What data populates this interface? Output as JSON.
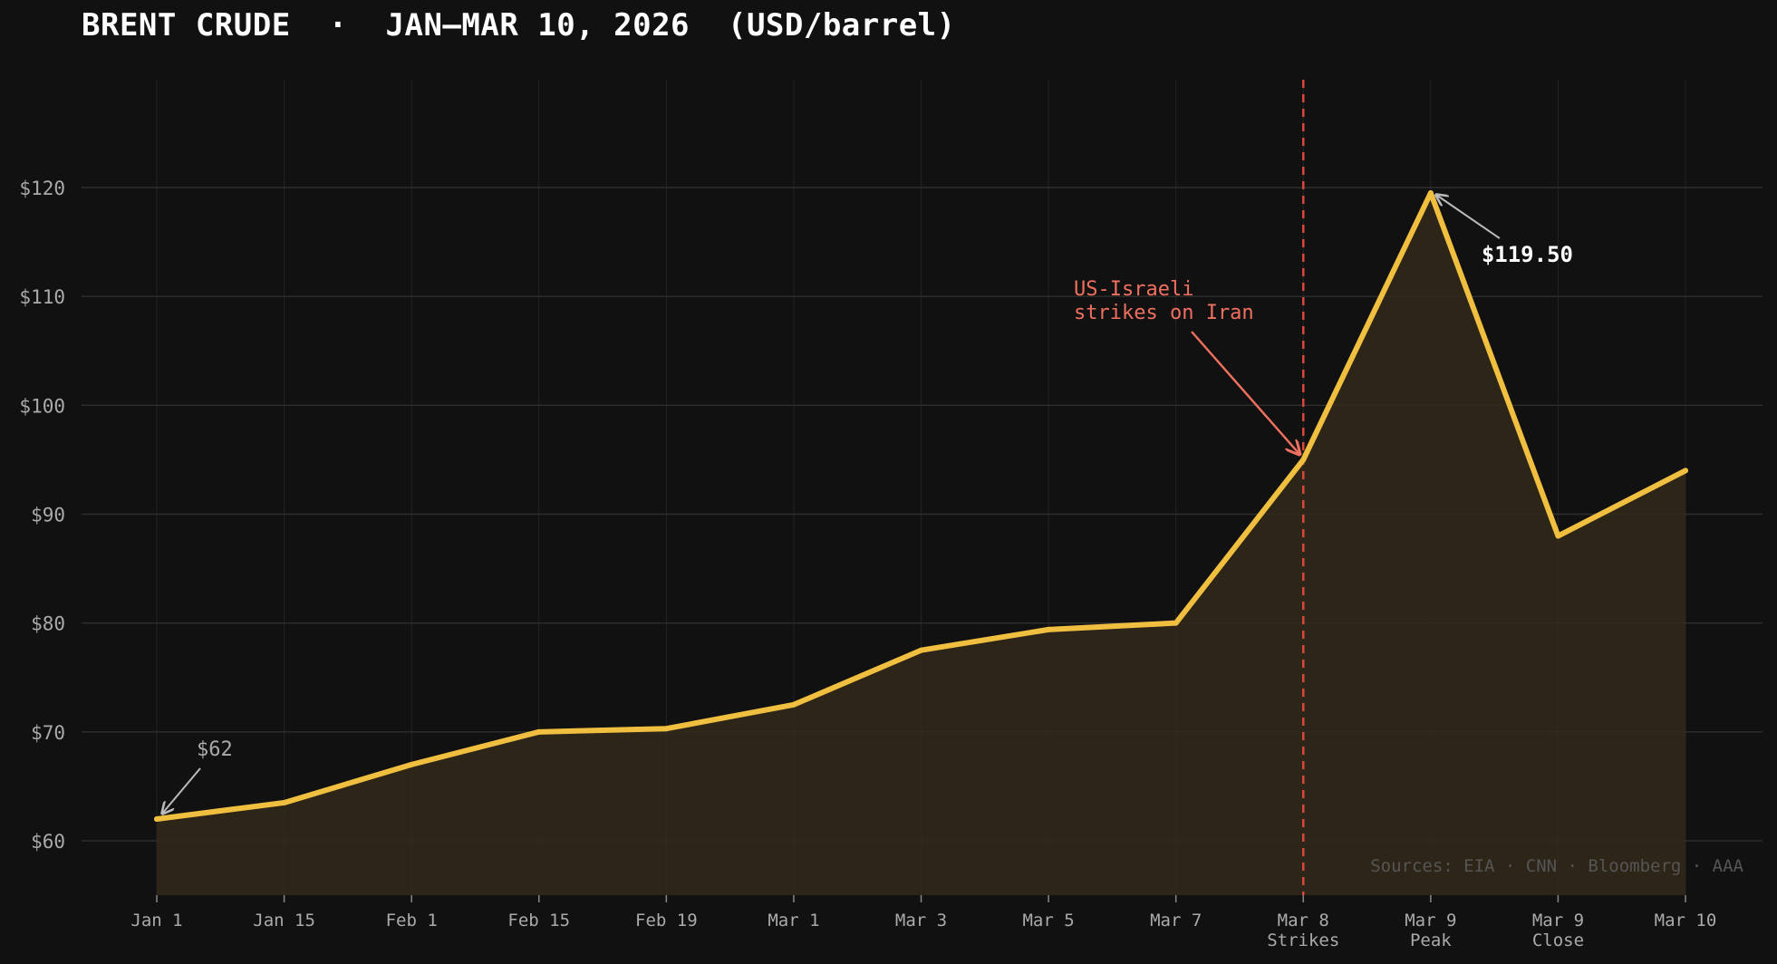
{
  "chart_data": {
    "type": "area",
    "title": "BRENT CRUDE  ·  JAN–MAR 10, 2026  (USD/barrel)",
    "xlabel": "",
    "ylabel": "",
    "categories": [
      {
        "label": "Jan 1",
        "sublabel": ""
      },
      {
        "label": "Jan 15",
        "sublabel": ""
      },
      {
        "label": "Feb 1",
        "sublabel": ""
      },
      {
        "label": "Feb 15",
        "sublabel": ""
      },
      {
        "label": "Feb 19",
        "sublabel": ""
      },
      {
        "label": "Mar 1",
        "sublabel": ""
      },
      {
        "label": "Mar 3",
        "sublabel": ""
      },
      {
        "label": "Mar 5",
        "sublabel": ""
      },
      {
        "label": "Mar 7",
        "sublabel": ""
      },
      {
        "label": "Mar 8",
        "sublabel": "Strikes"
      },
      {
        "label": "Mar 9",
        "sublabel": "Peak"
      },
      {
        "label": "Mar 9",
        "sublabel": "Close"
      },
      {
        "label": "Mar 10",
        "sublabel": ""
      }
    ],
    "series": [
      {
        "values": [
          62,
          63.5,
          67,
          70,
          70.3,
          72.5,
          77.5,
          79.4,
          80,
          95,
          119.5,
          88,
          94
        ],
        "color": "#f0bf3f"
      }
    ],
    "ylim": [
      55,
      130
    ],
    "yticks": [
      60,
      70,
      80,
      90,
      100,
      110,
      120
    ],
    "ytick_prefix": "$",
    "grid": true,
    "legend": "none",
    "event_marker": {
      "category_index": 9,
      "color": "#d9463b",
      "style": "dashed"
    },
    "annotations": [
      {
        "text": "$62",
        "target_index": 0,
        "color": "#aaaaaa"
      },
      {
        "text": "US-Israeli\nstrikes on Iran",
        "target_index": 9,
        "color": "#f07060"
      },
      {
        "text": "$119.50",
        "target_index": 10,
        "color": "#ffffff"
      }
    ],
    "source_note": "Sources: EIA · CNN · Bloomberg · AAA"
  },
  "colors": {
    "background": "#111111",
    "line": "#f0bf3f",
    "fill": "#33291a",
    "grid": "#2e2e2e",
    "tick_text": "#aaaaaa",
    "event": "#d9463b"
  }
}
